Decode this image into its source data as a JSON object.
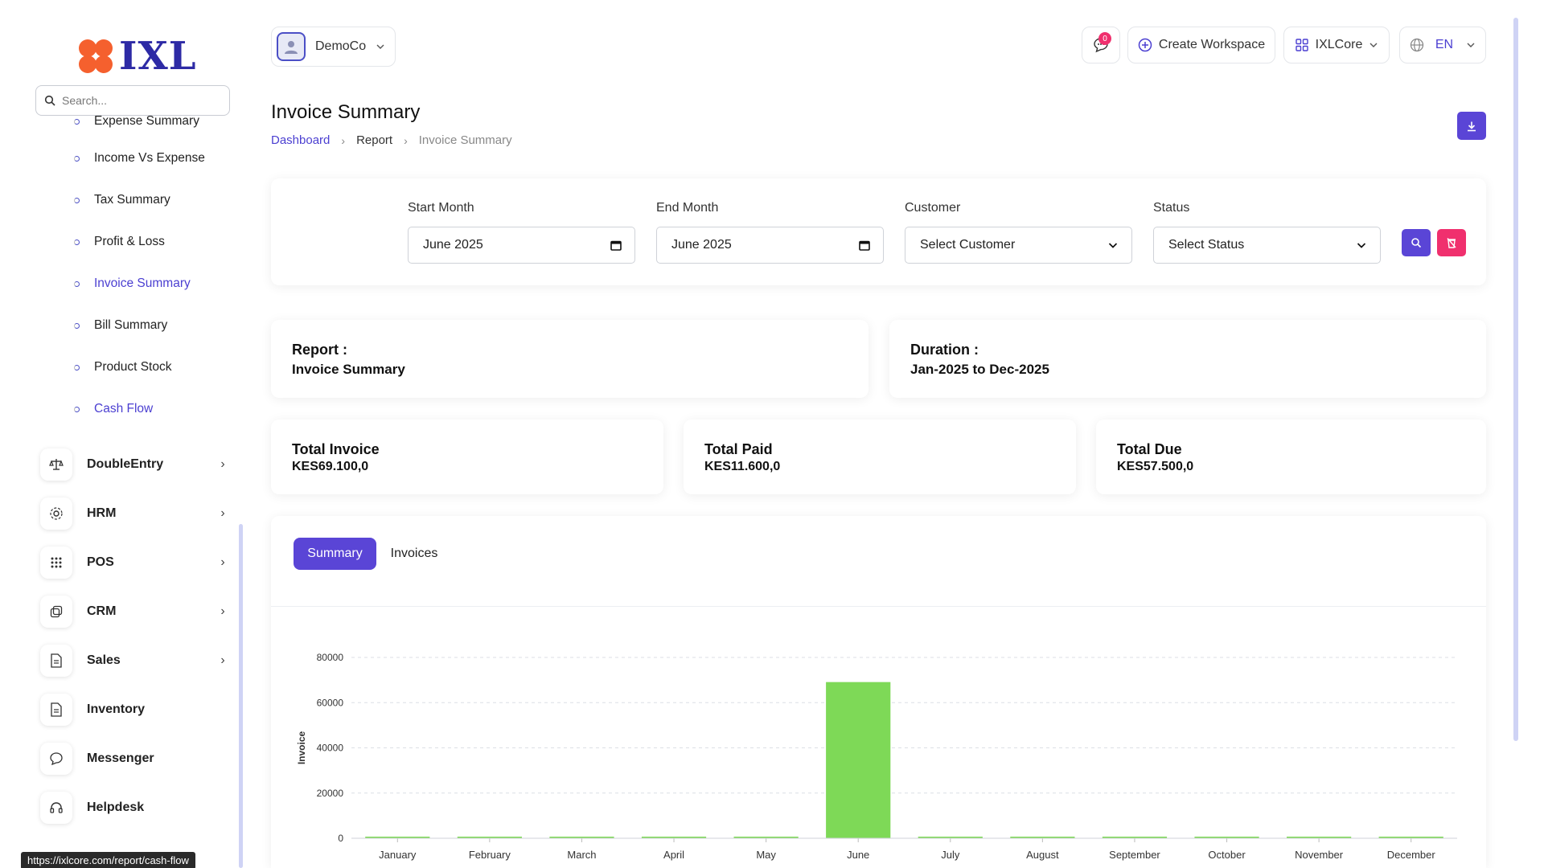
{
  "brand": {
    "logo_text": "IXL",
    "logo_color": "#2d2aa5",
    "flower_color": "#f5602e"
  },
  "sidebar": {
    "search_placeholder": "Search...",
    "sub_items": [
      {
        "label": "Expense Summary",
        "active": false
      },
      {
        "label": "Income Vs Expense",
        "active": false
      },
      {
        "label": "Tax Summary",
        "active": false
      },
      {
        "label": "Profit & Loss",
        "active": false
      },
      {
        "label": "Invoice Summary",
        "active": true
      },
      {
        "label": "Bill Summary",
        "active": false
      },
      {
        "label": "Product Stock",
        "active": false
      },
      {
        "label": "Cash Flow",
        "active": true
      }
    ],
    "nav_items": [
      {
        "label": "DoubleEntry",
        "icon": "scale-icon",
        "has_children": true
      },
      {
        "label": "HRM",
        "icon": "hrm-icon",
        "has_children": true
      },
      {
        "label": "POS",
        "icon": "grid-icon",
        "has_children": true
      },
      {
        "label": "CRM",
        "icon": "crm-icon",
        "has_children": true
      },
      {
        "label": "Sales",
        "icon": "document-icon",
        "has_children": true
      },
      {
        "label": "Inventory",
        "icon": "document-icon",
        "has_children": false
      },
      {
        "label": "Messenger",
        "icon": "chat-icon",
        "has_children": false
      },
      {
        "label": "Helpdesk",
        "icon": "headset-icon",
        "has_children": false
      }
    ],
    "status_url": "https://ixlcore.com/report/cash-flow"
  },
  "header": {
    "company": "DemoCo",
    "notification_count": "0",
    "create_workspace": "Create Workspace",
    "workspace": "IXLCore",
    "language": "EN"
  },
  "page": {
    "title": "Invoice Summary",
    "breadcrumb": [
      "Dashboard",
      "Report",
      "Invoice Summary"
    ]
  },
  "filters": {
    "start_month_label": "Start Month",
    "start_month_value": "June 2025",
    "end_month_label": "End Month",
    "end_month_value": "June 2025",
    "customer_label": "Customer",
    "customer_value": "Select Customer",
    "status_label": "Status",
    "status_value": "Select Status"
  },
  "report_info": {
    "report_label": "Report :",
    "report_value": "Invoice Summary",
    "duration_label": "Duration :",
    "duration_value": "Jan-2025 to Dec-2025"
  },
  "totals": [
    {
      "label": "Total Invoice",
      "value": "KES69.100,0"
    },
    {
      "label": "Total Paid",
      "value": "KES11.600,0"
    },
    {
      "label": "Total Due",
      "value": "KES57.500,0"
    }
  ],
  "tabs": [
    {
      "label": "Summary",
      "active": true
    },
    {
      "label": "Invoices",
      "active": false
    }
  ],
  "colors": {
    "accent": "#5a45d6",
    "danger": "#f0306e",
    "bar": "#7ed957"
  },
  "chart_data": {
    "type": "bar",
    "categories": [
      "January",
      "February",
      "March",
      "April",
      "May",
      "June",
      "July",
      "August",
      "September",
      "October",
      "November",
      "December"
    ],
    "values": [
      0,
      0,
      0,
      0,
      0,
      69100,
      0,
      0,
      0,
      0,
      0,
      0
    ],
    "ylabel": "Invoice",
    "xlabel": "",
    "ylim": [
      0,
      80000
    ],
    "yticks": [
      0,
      20000,
      40000,
      60000,
      80000
    ],
    "grid": true
  }
}
